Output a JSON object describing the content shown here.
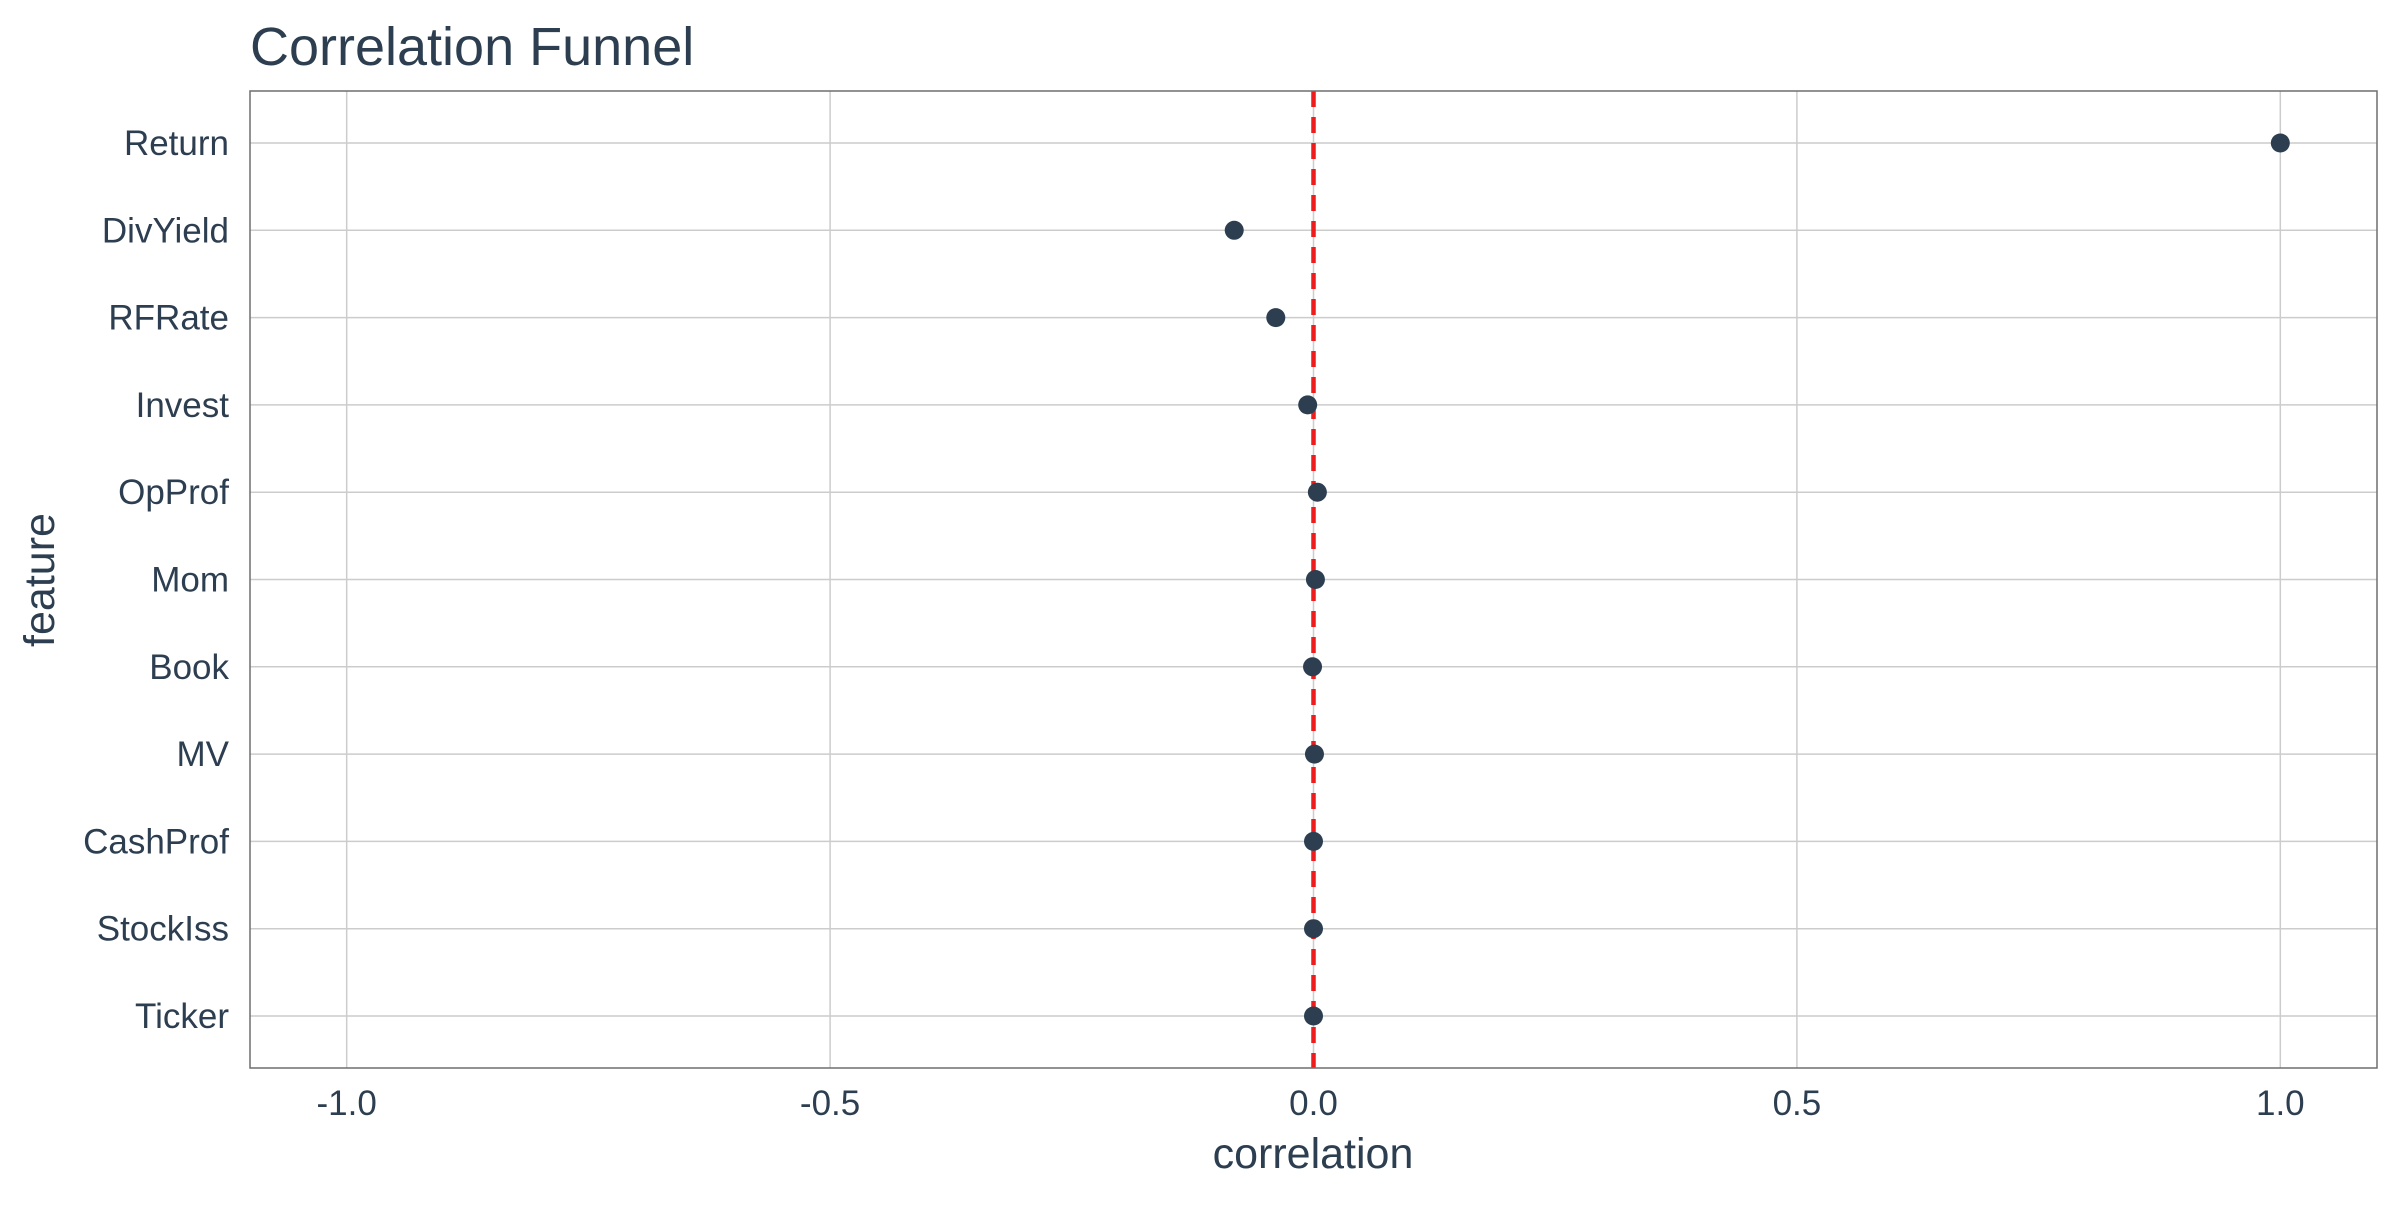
{
  "chart_data": {
    "type": "scatter",
    "title": "Correlation Funnel",
    "xlabel": "correlation",
    "ylabel": "feature",
    "xlim": [
      -1.1,
      1.1
    ],
    "x_ticks": [
      -1.0,
      -0.5,
      0.0,
      0.5,
      1.0
    ],
    "x_tick_labels": [
      "-1.0",
      "-0.5",
      "0.0",
      "0.5",
      "1.0"
    ],
    "categories": [
      "Return",
      "DivYield",
      "RFRate",
      "Invest",
      "OpProf",
      "Mom",
      "Book",
      "MV",
      "CashProf",
      "StockIss",
      "Ticker"
    ],
    "values": [
      1.0,
      -0.082,
      -0.039,
      -0.006,
      0.004,
      0.002,
      -0.001,
      0.001,
      0.0,
      0.0,
      0.0
    ],
    "reference_line": {
      "x": 0,
      "style": "dashed"
    },
    "grid": true,
    "legend": "none",
    "colors": {
      "point": "#2c3e50",
      "reference_line": "#ee1c1c",
      "grid": "#cccccc",
      "text": "#2c3e50"
    }
  }
}
